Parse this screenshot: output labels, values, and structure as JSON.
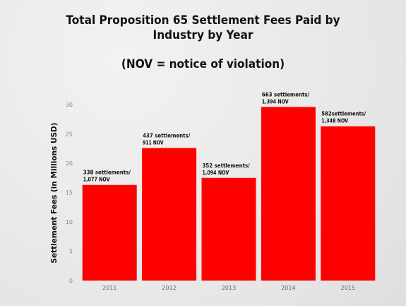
{
  "chart_data": {
    "type": "bar",
    "title_lines": [
      "Total Proposition 65 Settlement Fees Paid by",
      "Industry by Year",
      "(NOV = notice of violation)"
    ],
    "xlabel": "",
    "ylabel": "Settlement Fees (in Millions USD)",
    "ylim": [
      0,
      30
    ],
    "yticks": [
      0,
      5,
      10,
      15,
      20,
      25,
      30
    ],
    "categories": [
      "2011",
      "2012",
      "2013",
      "2014",
      "2015"
    ],
    "values": [
      16.3,
      22.6,
      17.5,
      29.6,
      26.3
    ],
    "annotations": [
      [
        "338 settlements/",
        "1,077 NOV"
      ],
      [
        "437 settlements/",
        "911 NOV"
      ],
      [
        "352 settlements/",
        "1,094 NOV"
      ],
      [
        "663 settlements/",
        "1,394 NOV"
      ],
      [
        "582settlements/",
        "1,348 NOV"
      ]
    ],
    "grid": false,
    "bar_color": "#ff0000"
  }
}
